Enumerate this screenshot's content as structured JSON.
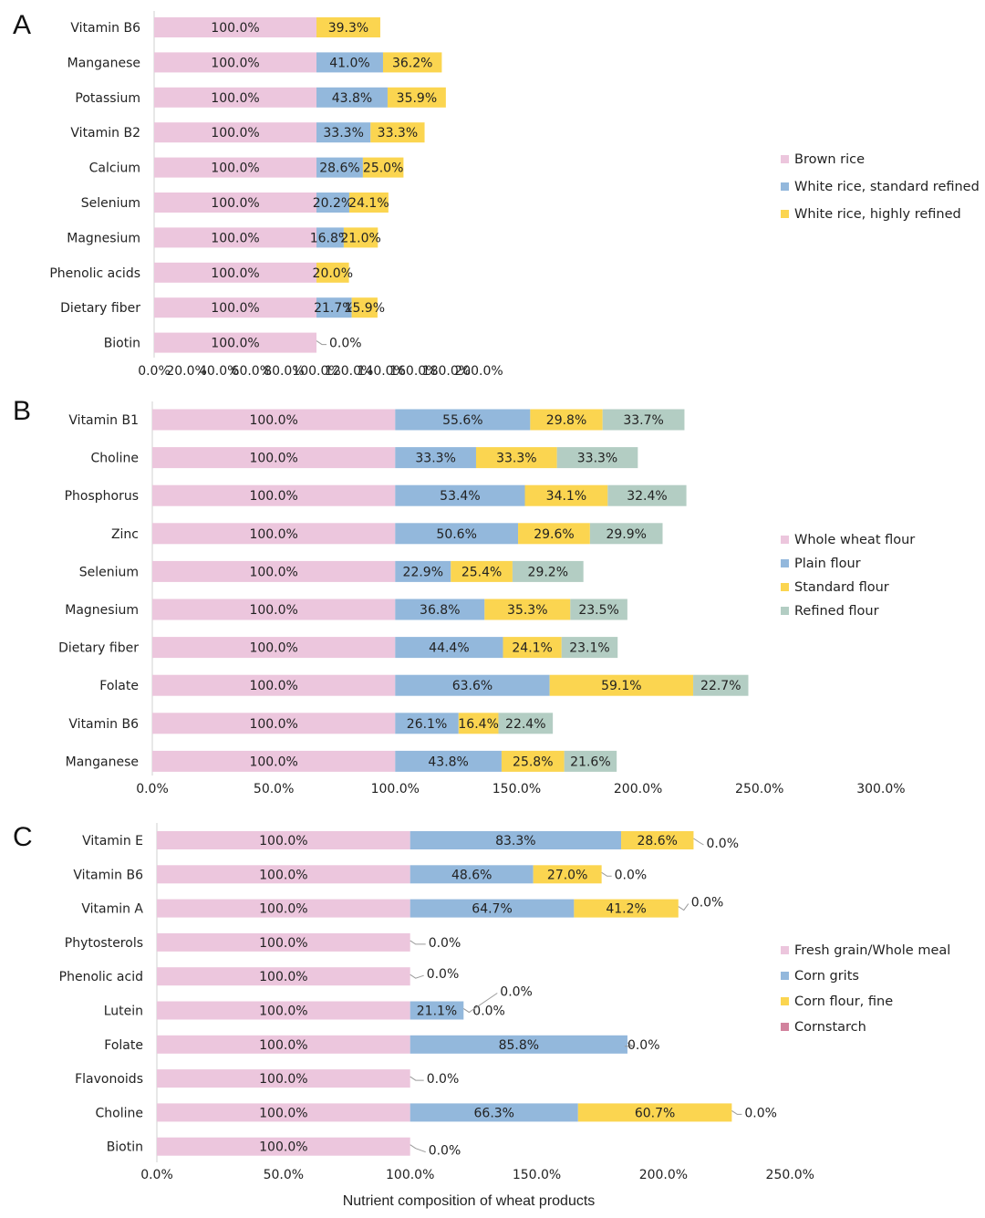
{
  "figure": {
    "xlabel": "Nutrient composition of wheat products"
  },
  "colors": {
    "pink": "#ecc6dd",
    "blue": "#93b8dc",
    "yellow": "#fbd550",
    "sage": "#b3cdc3",
    "rose": "#d2839e"
  },
  "chart_data": [
    {
      "panel": "A",
      "type": "bar",
      "orientation": "horizontal",
      "stacked": true,
      "categories": [
        "Vitamin B6",
        "Manganese",
        "Potassium",
        "Vitamin B2",
        "Calcium",
        "Selenium",
        "Magnesium",
        "Phenolic acids",
        "Dietary fiber",
        "Biotin"
      ],
      "series": [
        {
          "name": "Brown rice",
          "color": "#ecc6dd",
          "values": [
            100.0,
            100.0,
            100.0,
            100.0,
            100.0,
            100.0,
            100.0,
            100.0,
            100.0,
            100.0
          ]
        },
        {
          "name": "White rice, standard  refined",
          "color": "#93b8dc",
          "values": [
            null,
            41.0,
            43.8,
            33.3,
            28.6,
            20.2,
            16.8,
            null,
            21.7,
            null
          ]
        },
        {
          "name": "White rice, highly refined",
          "color": "#fbd550",
          "values": [
            39.3,
            36.2,
            35.9,
            33.3,
            25.0,
            24.1,
            21.0,
            20.0,
            15.9,
            0.0
          ]
        }
      ],
      "xticks": [
        "0.0%",
        "20.0%",
        "40.0%",
        "60.0%",
        "80.0%",
        "100.0%",
        "120.0%",
        "140.0%",
        "160.0%",
        "180.0%",
        "200.0%"
      ],
      "xlim": [
        0,
        200
      ],
      "legend": "right"
    },
    {
      "panel": "B",
      "type": "bar",
      "orientation": "horizontal",
      "stacked": true,
      "categories": [
        "Vitamin B1",
        "Choline",
        "Phosphorus",
        "Zinc",
        "Selenium",
        "Magnesium",
        "Dietary fiber",
        "Folate",
        "Vitamin B6",
        "Manganese"
      ],
      "series": [
        {
          "name": "Whole wheat flour",
          "color": "#ecc6dd",
          "values": [
            100.0,
            100.0,
            100.0,
            100.0,
            100.0,
            100.0,
            100.0,
            100.0,
            100.0,
            100.0
          ]
        },
        {
          "name": "Plain flour",
          "color": "#93b8dc",
          "values": [
            55.6,
            33.3,
            53.4,
            50.6,
            22.9,
            36.8,
            44.4,
            63.6,
            26.1,
            43.8
          ]
        },
        {
          "name": "Standard flour",
          "color": "#fbd550",
          "values": [
            29.8,
            33.3,
            34.1,
            29.6,
            25.4,
            35.3,
            24.1,
            59.1,
            16.4,
            25.8
          ]
        },
        {
          "name": "Refined flour",
          "color": "#b3cdc3",
          "values": [
            33.7,
            33.3,
            32.4,
            29.9,
            29.2,
            23.5,
            23.1,
            22.7,
            22.4,
            21.6
          ]
        }
      ],
      "xticks": [
        "0.0%",
        "50.0%",
        "100.0%",
        "150.0%",
        "200.0%",
        "250.0%",
        "300.0%"
      ],
      "xlim": [
        0,
        300
      ],
      "legend": "right"
    },
    {
      "panel": "C",
      "type": "bar",
      "orientation": "horizontal",
      "stacked": true,
      "categories": [
        "Vitamin E",
        "Vitamin B6",
        "Vitamin A",
        "Phytosterols",
        "Phenolic acid",
        "Lutein",
        "Folate",
        "Flavonoids",
        "Choline",
        "Biotin"
      ],
      "series": [
        {
          "name": "Fresh grain/Whole meal",
          "color": "#ecc6dd",
          "values": [
            100.0,
            100.0,
            100.0,
            100.0,
            100.0,
            100.0,
            100.0,
            100.0,
            100.0,
            100.0
          ]
        },
        {
          "name": "Corn grits",
          "color": "#93b8dc",
          "values": [
            83.3,
            48.6,
            64.7,
            0.0,
            0.0,
            21.1,
            85.8,
            0.0,
            66.3,
            0.0
          ]
        },
        {
          "name": "Corn flour, fine",
          "color": "#fbd550",
          "values": [
            28.6,
            27.0,
            41.2,
            null,
            null,
            0.0,
            null,
            null,
            60.7,
            null
          ]
        },
        {
          "name": "Cornstarch",
          "color": "#d2839e",
          "values": [
            0.0,
            0.0,
            0.0,
            null,
            null,
            0.0,
            0.0,
            null,
            0.0,
            null
          ]
        }
      ],
      "xticks": [
        "0.0%",
        "50.0%",
        "100.0%",
        "150.0%",
        "200.0%",
        "250.0%"
      ],
      "xlim": [
        0,
        250
      ],
      "legend": "right"
    }
  ]
}
